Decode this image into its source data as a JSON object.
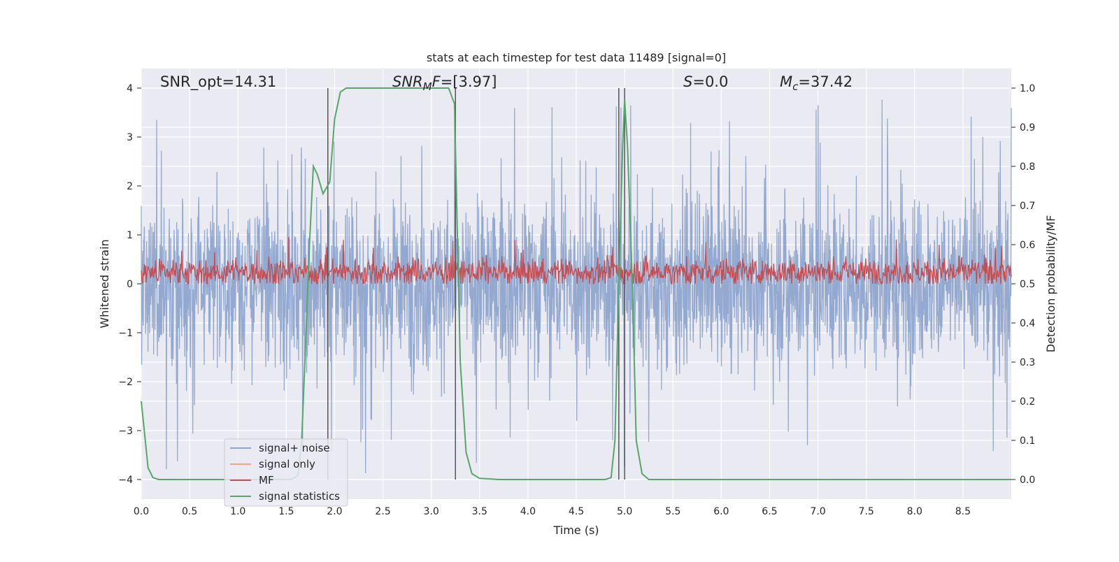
{
  "chart_data": {
    "type": "line",
    "title": "stats at each timestep for test data 11489 [signal=0]",
    "xlabel": "Time (s)",
    "ylabel": "Whitened strain",
    "ylabel_right": "Detection probability/MF",
    "xlim": [
      0.0,
      9.0
    ],
    "ylim": [
      -4.4,
      4.4
    ],
    "ylim_right": [
      -0.05,
      1.05
    ],
    "x_ticks": [
      "0.0",
      "0.5",
      "1.0",
      "1.5",
      "2.0",
      "2.5",
      "3.0",
      "3.5",
      "4.0",
      "4.5",
      "5.0",
      "5.5",
      "6.0",
      "6.5",
      "7.0",
      "7.5",
      "8.0",
      "8.5"
    ],
    "y_ticks": [
      "4",
      "3",
      "2",
      "1",
      "0",
      "−1",
      "−2",
      "−3",
      "−4"
    ],
    "y_ticks_right": [
      "1.0",
      "0.9",
      "0.8",
      "0.7",
      "0.6",
      "0.5",
      "0.4",
      "0.3",
      "0.2",
      "0.1",
      "0.0"
    ],
    "grid": true,
    "legend_position": "lower-left",
    "annotations": {
      "snr_opt": "SNR_opt=14.31",
      "snr_mf_sym": "SNR",
      "snr_mf_sub": "M",
      "snr_mf_sym2": "F",
      "snr_mf_val": "=[3.97]",
      "s_sym": "S",
      "s_val": "=0.0",
      "mc_sym": "M",
      "mc_sub": "c",
      "mc_val": "=37.42"
    },
    "vlines": [
      1.93,
      3.25,
      4.94,
      5.0
    ],
    "series": [
      {
        "name": "signal+ noise",
        "color": "#8fa5cc",
        "amplitude": 1.6,
        "peak_extent": [
          -4.0,
          4.0
        ]
      },
      {
        "name": "signal only",
        "color": "#eea58a",
        "values": []
      },
      {
        "name": "MF",
        "color": "#c44e52",
        "range": [
          0.0,
          1.0
        ]
      },
      {
        "name": "signal statistics",
        "color": "#55a868",
        "x": [
          0.0,
          0.07,
          0.12,
          0.18,
          0.5,
          1.0,
          1.4,
          1.55,
          1.62,
          1.66,
          1.7,
          1.74,
          1.78,
          1.82,
          1.88,
          1.95,
          2.0,
          2.06,
          2.12,
          2.5,
          3.0,
          3.18,
          3.24,
          3.3,
          3.36,
          3.42,
          3.5,
          3.7,
          4.5,
          4.8,
          4.86,
          4.9,
          4.94,
          4.98,
          5.0,
          5.03,
          5.08,
          5.12,
          5.18,
          5.25,
          6.0,
          7.0,
          8.0,
          9.0
        ],
        "values": [
          0.2,
          0.03,
          0.005,
          0.0,
          0.0,
          0.0,
          0.0,
          0.0,
          0.01,
          0.1,
          0.35,
          0.6,
          0.8,
          0.78,
          0.73,
          0.76,
          0.92,
          0.99,
          1.0,
          1.0,
          1.0,
          1.0,
          0.96,
          0.3,
          0.07,
          0.015,
          0.003,
          0.0,
          0.0,
          0.0,
          0.005,
          0.1,
          0.5,
          0.85,
          0.97,
          0.85,
          0.5,
          0.1,
          0.015,
          0.0,
          0.0,
          0.0,
          0.0,
          0.0
        ]
      }
    ]
  }
}
